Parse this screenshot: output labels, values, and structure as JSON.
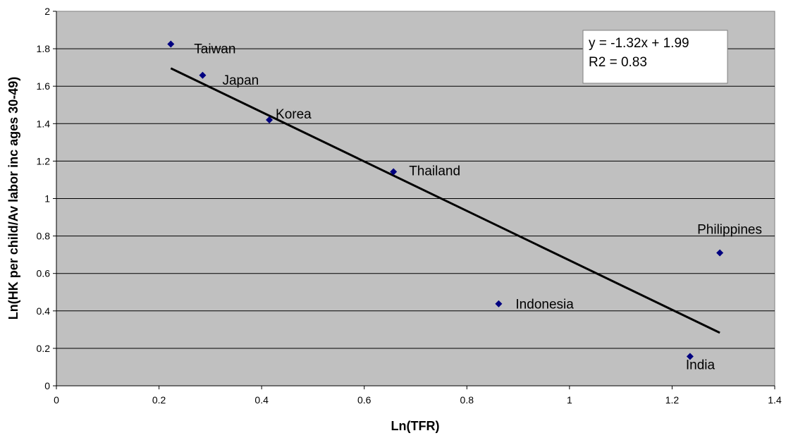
{
  "chart_data": {
    "type": "scatter",
    "title": "",
    "xlabel": "Ln(TFR)",
    "ylabel": "Ln(HK per child/Av labor inc ages 30-49)",
    "xlim": [
      0,
      1.4
    ],
    "ylim": [
      0,
      2
    ],
    "x_ticks": [
      "0",
      "0.2",
      "0.4",
      "0.6",
      "0.8",
      "1",
      "1.2",
      "1.4"
    ],
    "y_ticks": [
      "0",
      "0.2",
      "0.4",
      "0.6",
      "0.8",
      "1",
      "1.2",
      "1.4",
      "1.6",
      "1.8",
      "2"
    ],
    "grid": "horizontal",
    "points": [
      {
        "label": "Taiwan",
        "x": 0.223,
        "y": 1.825
      },
      {
        "label": "Japan",
        "x": 0.285,
        "y": 1.658
      },
      {
        "label": "Korea",
        "x": 0.415,
        "y": 1.42
      },
      {
        "label": "Thailand",
        "x": 0.657,
        "y": 1.143
      },
      {
        "label": "Indonesia",
        "x": 0.862,
        "y": 0.438
      },
      {
        "label": "Philippines",
        "x": 1.293,
        "y": 0.71
      },
      {
        "label": "India",
        "x": 1.235,
        "y": 0.157
      }
    ],
    "trendline": {
      "slope": -1.32,
      "intercept": 1.99,
      "x_from": 0.223,
      "x_to": 1.293
    },
    "annotation": {
      "line1": "y = -1.32x + 1.99",
      "line2": "R2 = 0.83"
    },
    "colors": {
      "plot_bg": "#c0c0c0",
      "marker": "#000080",
      "trendline": "#000000",
      "grid": "#000000"
    }
  }
}
